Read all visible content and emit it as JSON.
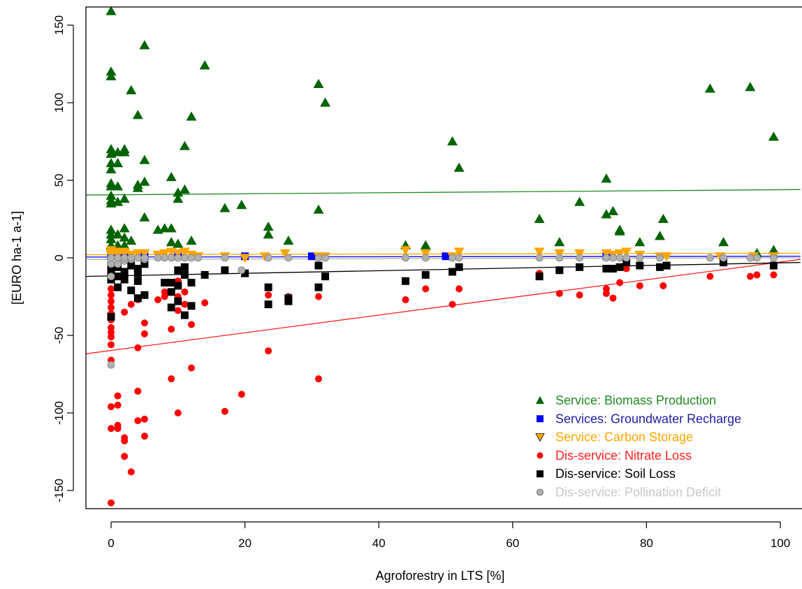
{
  "chart_data": {
    "type": "scatter",
    "title": "",
    "xlabel": "Agroforestry in LTS [%]",
    "ylabel": "[EURO ha-1 a-1]",
    "xlim": [
      -4,
      103
    ],
    "ylim": [
      -162,
      162
    ],
    "x_ticks": [
      0,
      20,
      40,
      60,
      80,
      100
    ],
    "x_tick_labels": [
      "0",
      "20",
      "40",
      "60",
      "80",
      "100"
    ],
    "y_ticks": [
      -150,
      -100,
      -50,
      0,
      50,
      100,
      150
    ],
    "y_tick_labels": [
      "-150",
      "-100",
      "-50",
      "0",
      "50",
      "100",
      "150"
    ],
    "grid": false,
    "legend_position": "bottom-right",
    "series": [
      {
        "name": "Service: Biomass Production",
        "marker": "triangle-up",
        "color": "#006400",
        "text_color": "#228b22",
        "line_color": "#228b22",
        "trend": [
          [
            -4,
            40.5
          ],
          [
            103,
            44
          ]
        ],
        "points": [
          [
            0,
            159
          ],
          [
            0,
            120
          ],
          [
            0,
            117
          ],
          [
            0,
            70
          ],
          [
            0,
            67
          ],
          [
            0,
            61
          ],
          [
            0,
            57
          ],
          [
            0,
            48
          ],
          [
            0,
            46
          ],
          [
            0,
            40
          ],
          [
            0,
            37
          ],
          [
            0,
            35
          ],
          [
            0,
            18
          ],
          [
            0,
            15
          ],
          [
            0,
            12
          ],
          [
            0,
            8
          ],
          [
            1,
            68
          ],
          [
            1,
            61
          ],
          [
            1,
            46
          ],
          [
            1,
            36
          ],
          [
            1,
            15
          ],
          [
            1,
            8
          ],
          [
            2,
            70
          ],
          [
            2,
            68
          ],
          [
            2,
            38
          ],
          [
            2,
            19
          ],
          [
            2,
            13
          ],
          [
            2,
            8
          ],
          [
            3,
            108
          ],
          [
            3,
            11
          ],
          [
            4,
            92
          ],
          [
            4,
            45
          ],
          [
            4,
            47
          ],
          [
            5,
            49
          ],
          [
            5,
            26
          ],
          [
            5,
            137
          ],
          [
            5,
            63
          ],
          [
            7,
            18
          ],
          [
            8,
            19
          ],
          [
            9,
            19
          ],
          [
            9,
            10
          ],
          [
            9,
            52
          ],
          [
            10,
            42
          ],
          [
            10,
            38
          ],
          [
            10,
            9
          ],
          [
            11,
            72
          ],
          [
            11,
            44
          ],
          [
            12,
            91
          ],
          [
            12,
            11
          ],
          [
            14,
            124
          ],
          [
            17,
            32
          ],
          [
            19.5,
            34
          ],
          [
            23.5,
            20
          ],
          [
            23.5,
            15
          ],
          [
            26.5,
            11
          ],
          [
            31,
            112
          ],
          [
            31,
            31
          ],
          [
            32,
            100
          ],
          [
            44,
            8
          ],
          [
            47,
            8
          ],
          [
            51,
            75
          ],
          [
            52,
            58
          ],
          [
            64,
            25
          ],
          [
            67,
            10
          ],
          [
            70,
            36
          ],
          [
            74,
            51
          ],
          [
            74,
            28
          ],
          [
            75,
            30
          ],
          [
            76,
            17
          ],
          [
            76,
            18
          ],
          [
            79,
            10
          ],
          [
            82,
            14
          ],
          [
            82.5,
            25
          ],
          [
            89.5,
            109
          ],
          [
            91.5,
            10
          ],
          [
            95.5,
            110
          ],
          [
            96.5,
            3
          ],
          [
            99,
            78
          ],
          [
            99,
            5
          ]
        ]
      },
      {
        "name": "Services: Groundwater Recharge",
        "marker": "square",
        "color": "#0000ff",
        "text_color": "#1e1ea0",
        "line_color": "#0000ff",
        "trend": [
          [
            -4,
            0.5
          ],
          [
            103,
            1
          ]
        ],
        "points": [
          [
            0,
            1
          ],
          [
            1,
            1
          ],
          [
            2,
            1
          ],
          [
            5,
            1
          ],
          [
            10,
            1
          ],
          [
            20,
            1
          ],
          [
            30,
            1
          ],
          [
            50,
            1
          ],
          [
            74,
            1
          ],
          [
            96,
            1
          ]
        ]
      },
      {
        "name": "Service: Carbon Storage",
        "marker": "triangle-down",
        "color": "#ffa500",
        "text_color": "#ffa500",
        "line_color": "#ffa500",
        "trend": [
          [
            -4,
            2
          ],
          [
            103,
            3
          ]
        ],
        "points": [
          [
            0,
            5
          ],
          [
            0,
            3
          ],
          [
            0,
            2
          ],
          [
            1,
            4
          ],
          [
            1,
            2
          ],
          [
            2,
            4
          ],
          [
            2,
            3
          ],
          [
            3,
            2
          ],
          [
            4,
            3
          ],
          [
            5,
            3
          ],
          [
            7,
            2
          ],
          [
            8,
            3
          ],
          [
            9,
            4
          ],
          [
            10,
            3
          ],
          [
            11,
            4
          ],
          [
            12,
            2
          ],
          [
            13,
            1
          ],
          [
            17,
            1
          ],
          [
            20,
            0
          ],
          [
            23,
            1
          ],
          [
            26,
            3
          ],
          [
            31,
            1
          ],
          [
            32,
            1
          ],
          [
            44,
            5
          ],
          [
            47,
            3
          ],
          [
            51,
            1
          ],
          [
            52,
            4
          ],
          [
            64,
            4
          ],
          [
            67,
            3
          ],
          [
            70,
            3
          ],
          [
            74,
            3
          ],
          [
            75,
            2
          ],
          [
            76,
            3
          ],
          [
            77,
            4
          ],
          [
            79,
            2
          ],
          [
            82,
            1
          ],
          [
            83,
            1
          ],
          [
            91,
            1
          ],
          [
            96,
            1
          ],
          [
            99,
            1
          ]
        ]
      },
      {
        "name": "Dis-service: Nitrate Loss",
        "marker": "circle",
        "color": "#ff0000",
        "text_color": "#ff2020",
        "line_color": "#ff2020",
        "trend": [
          [
            -4,
            -62
          ],
          [
            103,
            -1
          ]
        ],
        "points": [
          [
            0,
            -158
          ],
          [
            0,
            -110
          ],
          [
            0,
            -96
          ],
          [
            0,
            -66
          ],
          [
            0,
            -56
          ],
          [
            0,
            -51
          ],
          [
            0,
            -48
          ],
          [
            0,
            -45
          ],
          [
            0,
            -40
          ],
          [
            0,
            -36
          ],
          [
            0,
            -32
          ],
          [
            0,
            -28
          ],
          [
            0,
            -24
          ],
          [
            0,
            -20
          ],
          [
            1,
            -95
          ],
          [
            1,
            -89
          ],
          [
            1,
            -108
          ],
          [
            1,
            -110
          ],
          [
            2,
            -128
          ],
          [
            2,
            -118
          ],
          [
            2,
            -116
          ],
          [
            2,
            -35
          ],
          [
            3,
            -138
          ],
          [
            3,
            -30
          ],
          [
            4,
            -105
          ],
          [
            4,
            -86
          ],
          [
            4,
            -58
          ],
          [
            4,
            -27
          ],
          [
            5,
            -104
          ],
          [
            5,
            -42
          ],
          [
            5,
            -49
          ],
          [
            5,
            -115
          ],
          [
            7,
            -27
          ],
          [
            8,
            -25
          ],
          [
            8,
            -22
          ],
          [
            9,
            -46
          ],
          [
            9,
            -78
          ],
          [
            10,
            -15
          ],
          [
            10,
            -25
          ],
          [
            10,
            -34
          ],
          [
            10,
            -100
          ],
          [
            11,
            -30
          ],
          [
            11,
            -22
          ],
          [
            12,
            -43
          ],
          [
            12,
            -71
          ],
          [
            14,
            -29
          ],
          [
            17,
            -99
          ],
          [
            19.5,
            -88
          ],
          [
            23.5,
            -60
          ],
          [
            23.5,
            -24
          ],
          [
            26.5,
            -25
          ],
          [
            31,
            -78
          ],
          [
            31,
            -25
          ],
          [
            44,
            -27
          ],
          [
            47,
            -20
          ],
          [
            51,
            -30
          ],
          [
            52,
            -20
          ],
          [
            64,
            -10
          ],
          [
            67,
            -23
          ],
          [
            70,
            -24
          ],
          [
            74,
            -20
          ],
          [
            74,
            -23
          ],
          [
            75,
            -26
          ],
          [
            76,
            -16
          ],
          [
            77,
            -7
          ],
          [
            79,
            -18
          ],
          [
            82,
            -6
          ],
          [
            82.5,
            -18
          ],
          [
            89.5,
            -12
          ],
          [
            95.5,
            -12
          ],
          [
            96.5,
            -11
          ],
          [
            99,
            -11
          ]
        ]
      },
      {
        "name": "Dis-service: Soil Loss",
        "marker": "square",
        "color": "#000000",
        "text_color": "#000000",
        "line_color": "#000000",
        "trend": [
          [
            -4,
            -12
          ],
          [
            103,
            -3
          ]
        ],
        "points": [
          [
            0,
            -38
          ],
          [
            0,
            -14
          ],
          [
            0,
            -10
          ],
          [
            0,
            -8
          ],
          [
            0,
            -5
          ],
          [
            1,
            -19
          ],
          [
            1,
            -12
          ],
          [
            1,
            -6
          ],
          [
            2,
            -14
          ],
          [
            2,
            -9
          ],
          [
            3,
            -21
          ],
          [
            3,
            -5
          ],
          [
            4,
            -26
          ],
          [
            4,
            -15
          ],
          [
            4,
            -10
          ],
          [
            4,
            -7
          ],
          [
            5,
            -24
          ],
          [
            5,
            -4
          ],
          [
            8,
            -16
          ],
          [
            9,
            -32
          ],
          [
            9,
            -22
          ],
          [
            9,
            -16
          ],
          [
            10,
            -28
          ],
          [
            10,
            -18
          ],
          [
            10,
            -8
          ],
          [
            11,
            -37
          ],
          [
            11,
            -11
          ],
          [
            11,
            -6
          ],
          [
            12,
            -31
          ],
          [
            12,
            -16
          ],
          [
            14,
            -11
          ],
          [
            17,
            -8
          ],
          [
            20,
            -10
          ],
          [
            23.5,
            -30
          ],
          [
            23.5,
            -19
          ],
          [
            26.5,
            -28
          ],
          [
            26.5,
            -26
          ],
          [
            31,
            -19
          ],
          [
            31,
            -5
          ],
          [
            32,
            -12
          ],
          [
            44,
            -15
          ],
          [
            47,
            -11
          ],
          [
            51,
            -9
          ],
          [
            52,
            -6
          ],
          [
            64,
            -12
          ],
          [
            67,
            -8
          ],
          [
            70,
            -6
          ],
          [
            74,
            -7
          ],
          [
            75,
            -7
          ],
          [
            76,
            -6
          ],
          [
            77,
            -3
          ],
          [
            79,
            -5
          ],
          [
            82,
            -6
          ],
          [
            83,
            -5
          ],
          [
            91.5,
            -3
          ],
          [
            99,
            -5
          ]
        ]
      },
      {
        "name": "Dis-service: Pollination Deficit",
        "marker": "circle-outline",
        "color": "#b0b0b0",
        "text_color": "#c8c8c8",
        "line_color": "#b0b0b0",
        "trend": [
          [
            -4,
            -1
          ],
          [
            103,
            0
          ]
        ],
        "points": [
          [
            0,
            -69
          ],
          [
            0,
            -12
          ],
          [
            0,
            -4
          ],
          [
            0,
            0
          ],
          [
            1,
            -4
          ],
          [
            1,
            0
          ],
          [
            2,
            -2
          ],
          [
            2,
            0
          ],
          [
            3,
            -1
          ],
          [
            3,
            0
          ],
          [
            4,
            0
          ],
          [
            5,
            -1
          ],
          [
            5,
            0
          ],
          [
            7,
            0
          ],
          [
            8,
            0
          ],
          [
            9,
            0
          ],
          [
            10,
            0
          ],
          [
            11,
            0
          ],
          [
            12,
            0
          ],
          [
            13,
            0
          ],
          [
            17,
            0
          ],
          [
            19.5,
            -8
          ],
          [
            23.5,
            0
          ],
          [
            26.5,
            0
          ],
          [
            31,
            0
          ],
          [
            32,
            0
          ],
          [
            44,
            0
          ],
          [
            47,
            0
          ],
          [
            51,
            0
          ],
          [
            52,
            0
          ],
          [
            64,
            0
          ],
          [
            67,
            0
          ],
          [
            70,
            0
          ],
          [
            74,
            0
          ],
          [
            75,
            0
          ],
          [
            76,
            0
          ],
          [
            77,
            0
          ],
          [
            79,
            0
          ],
          [
            82,
            0
          ],
          [
            89.5,
            0
          ],
          [
            91.5,
            0
          ],
          [
            95.5,
            0
          ],
          [
            96.5,
            0
          ],
          [
            99,
            0
          ]
        ]
      }
    ]
  }
}
